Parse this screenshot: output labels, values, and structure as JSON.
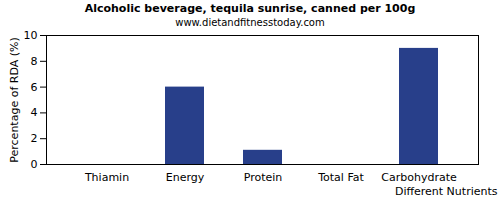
{
  "chart_data": {
    "type": "bar",
    "title": "Alcoholic beverage, tequila sunrise, canned per 100g",
    "subtitle": "www.dietandfitnesstoday.com",
    "x_label": "Different Nutrients",
    "y_label": "Percentage of RDA (%)",
    "categories": [
      "Thiamin",
      "Energy",
      "Protein",
      "Total Fat",
      "Carbohydrate"
    ],
    "values": [
      0,
      6,
      1.1,
      0,
      9
    ],
    "color": "#283f8a",
    "ylim": [
      0,
      10
    ],
    "yticks": [
      0,
      2,
      4,
      6,
      8,
      10
    ],
    "grid": false
  }
}
